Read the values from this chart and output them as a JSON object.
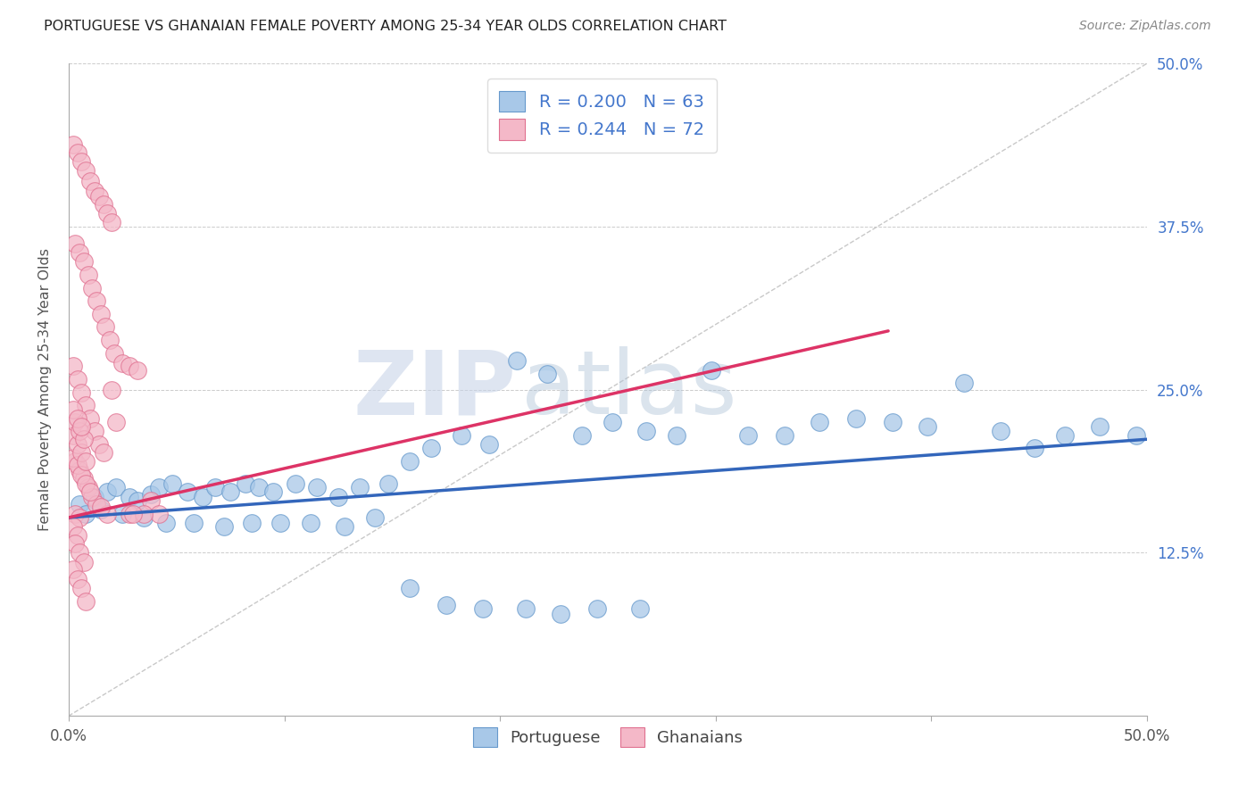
{
  "title": "PORTUGUESE VS GHANAIAN FEMALE POVERTY AMONG 25-34 YEAR OLDS CORRELATION CHART",
  "source": "Source: ZipAtlas.com",
  "ylabel": "Female Poverty Among 25-34 Year Olds",
  "xlim": [
    0.0,
    0.5
  ],
  "ylim": [
    0.0,
    0.5
  ],
  "watermark_zip": "ZIP",
  "watermark_atlas": "atlas",
  "blue_color": "#a8c8e8",
  "blue_edge_color": "#6699cc",
  "pink_color": "#f4b8c8",
  "pink_edge_color": "#e07090",
  "blue_line_color": "#3366bb",
  "pink_line_color": "#dd3366",
  "legend_R_blue": "0.200",
  "legend_N_blue": "63",
  "legend_R_pink": "0.244",
  "legend_N_pink": "72",
  "legend_label_blue": "Portuguese",
  "legend_label_pink": "Ghanaians",
  "blue_scatter_x": [
    0.005,
    0.012,
    0.018,
    0.022,
    0.028,
    0.032,
    0.038,
    0.042,
    0.048,
    0.055,
    0.062,
    0.068,
    0.075,
    0.082,
    0.088,
    0.095,
    0.105,
    0.115,
    0.125,
    0.135,
    0.148,
    0.158,
    0.168,
    0.182,
    0.195,
    0.208,
    0.222,
    0.238,
    0.252,
    0.268,
    0.282,
    0.298,
    0.315,
    0.332,
    0.348,
    0.365,
    0.382,
    0.398,
    0.415,
    0.432,
    0.448,
    0.462,
    0.478,
    0.495,
    0.008,
    0.015,
    0.025,
    0.035,
    0.045,
    0.058,
    0.072,
    0.085,
    0.098,
    0.112,
    0.128,
    0.142,
    0.158,
    0.175,
    0.192,
    0.212,
    0.228,
    0.245,
    0.265
  ],
  "blue_scatter_y": [
    0.162,
    0.168,
    0.172,
    0.175,
    0.168,
    0.165,
    0.17,
    0.175,
    0.178,
    0.172,
    0.168,
    0.175,
    0.172,
    0.178,
    0.175,
    0.172,
    0.178,
    0.175,
    0.168,
    0.175,
    0.178,
    0.195,
    0.205,
    0.215,
    0.208,
    0.272,
    0.262,
    0.215,
    0.225,
    0.218,
    0.215,
    0.265,
    0.215,
    0.215,
    0.225,
    0.228,
    0.225,
    0.222,
    0.255,
    0.218,
    0.205,
    0.215,
    0.222,
    0.215,
    0.155,
    0.158,
    0.155,
    0.152,
    0.148,
    0.148,
    0.145,
    0.148,
    0.148,
    0.148,
    0.145,
    0.152,
    0.098,
    0.085,
    0.082,
    0.082,
    0.078,
    0.082,
    0.082
  ],
  "pink_scatter_x": [
    0.002,
    0.004,
    0.006,
    0.008,
    0.01,
    0.012,
    0.014,
    0.016,
    0.018,
    0.02,
    0.003,
    0.005,
    0.007,
    0.009,
    0.011,
    0.013,
    0.015,
    0.017,
    0.019,
    0.021,
    0.002,
    0.004,
    0.006,
    0.008,
    0.01,
    0.012,
    0.014,
    0.016,
    0.003,
    0.005,
    0.007,
    0.009,
    0.011,
    0.013,
    0.002,
    0.004,
    0.006,
    0.008,
    0.01,
    0.002,
    0.004,
    0.006,
    0.008,
    0.003,
    0.005,
    0.007,
    0.002,
    0.004,
    0.006,
    0.003,
    0.005,
    0.002,
    0.004,
    0.003,
    0.005,
    0.007,
    0.002,
    0.004,
    0.006,
    0.008,
    0.018,
    0.015,
    0.02,
    0.025,
    0.028,
    0.032,
    0.022,
    0.038,
    0.042,
    0.028,
    0.035,
    0.03
  ],
  "pink_scatter_y": [
    0.438,
    0.432,
    0.425,
    0.418,
    0.41,
    0.402,
    0.398,
    0.392,
    0.385,
    0.378,
    0.362,
    0.355,
    0.348,
    0.338,
    0.328,
    0.318,
    0.308,
    0.298,
    0.288,
    0.278,
    0.268,
    0.258,
    0.248,
    0.238,
    0.228,
    0.218,
    0.208,
    0.202,
    0.195,
    0.188,
    0.182,
    0.175,
    0.168,
    0.162,
    0.198,
    0.192,
    0.185,
    0.178,
    0.172,
    0.215,
    0.208,
    0.202,
    0.195,
    0.225,
    0.218,
    0.212,
    0.235,
    0.228,
    0.222,
    0.155,
    0.152,
    0.145,
    0.138,
    0.132,
    0.125,
    0.118,
    0.112,
    0.105,
    0.098,
    0.088,
    0.155,
    0.16,
    0.25,
    0.27,
    0.268,
    0.265,
    0.225,
    0.165,
    0.155,
    0.155,
    0.155,
    0.155
  ],
  "blue_trend_x": [
    0.0,
    0.5
  ],
  "blue_trend_y": [
    0.152,
    0.212
  ],
  "pink_trend_x": [
    0.0,
    0.38
  ],
  "pink_trend_y": [
    0.152,
    0.295
  ],
  "diag_line_x": [
    0.0,
    0.5
  ],
  "diag_line_y": [
    0.0,
    0.5
  ]
}
